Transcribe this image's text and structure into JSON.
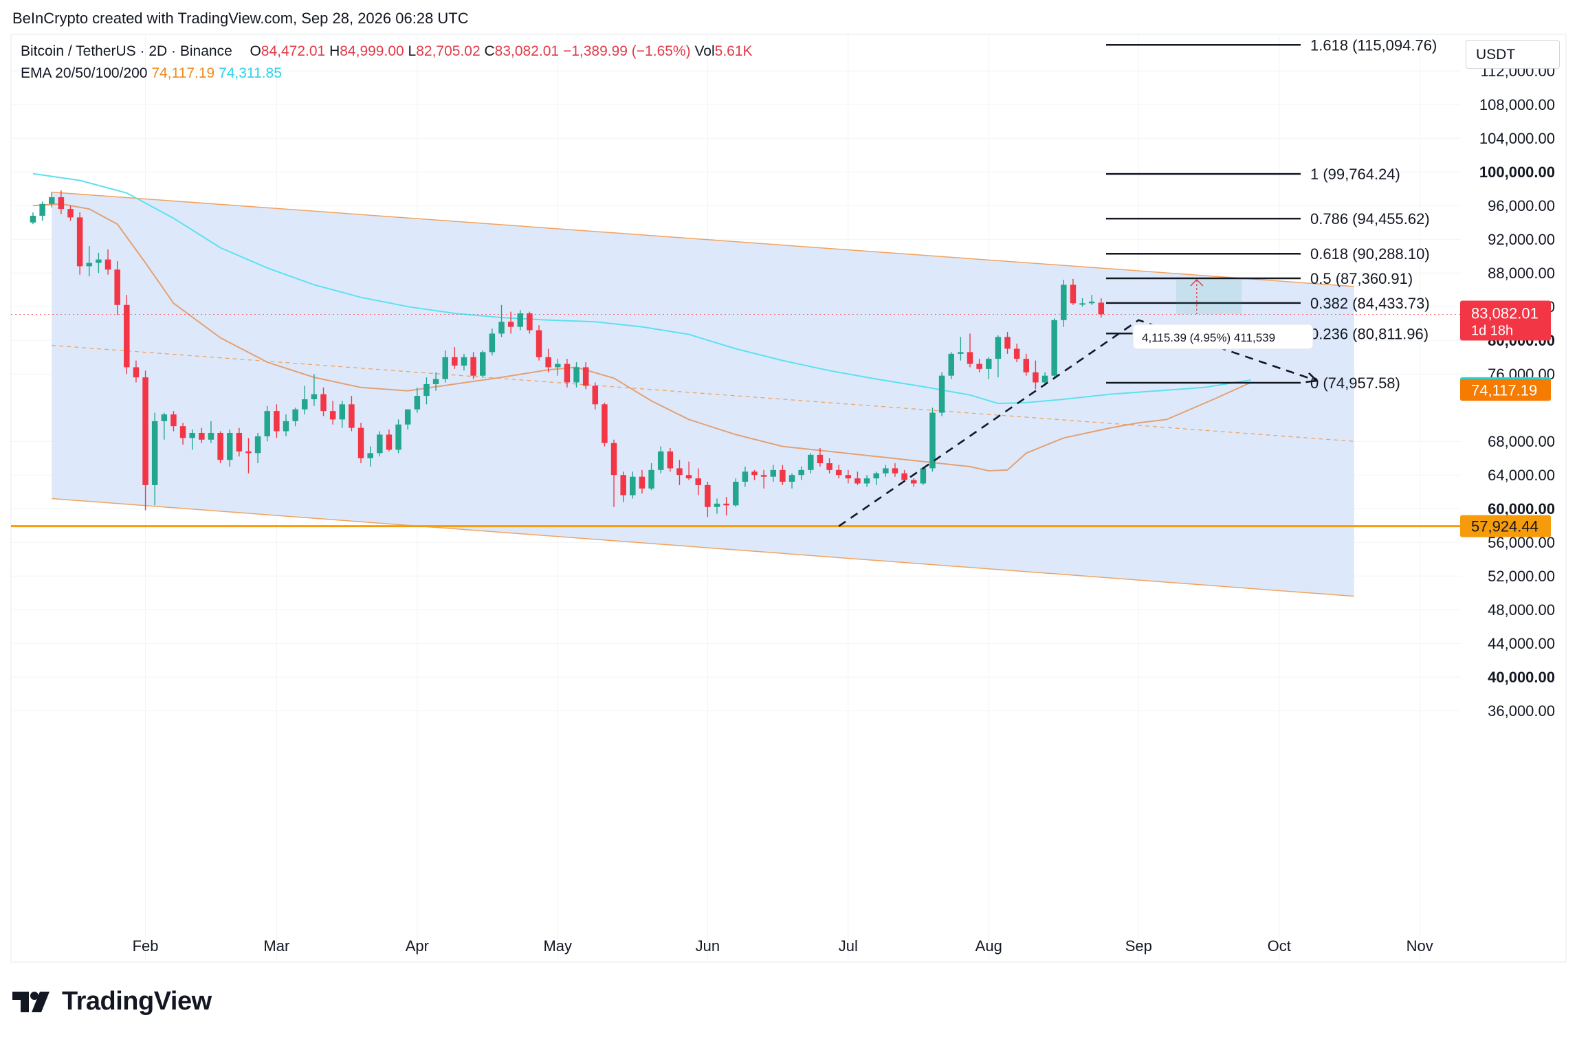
{
  "caption": "BeInCrypto created with TradingView.com, Sep 28, 2026 06:28 UTC",
  "symbol_line": {
    "symbol": "Bitcoin / TetherUS · 2D · Binance",
    "o_label": "O",
    "o_value": "84,472.01",
    "h_label": "H",
    "h_value": "84,999.00",
    "l_label": "L",
    "l_value": "82,705.02",
    "c_label": "C",
    "c_value": "83,082.01",
    "change": "−1,389.99 (−1.65%)",
    "vol_label": "Vol",
    "vol_value": "5.61K"
  },
  "ema_line": {
    "label": "EMA 20/50/100/200",
    "v1": "74,117.19",
    "v2": "74,311.85"
  },
  "currency": "USDT",
  "brand": "TradingView",
  "colors": {
    "up": "#22a68d",
    "down": "#f23645",
    "ema50": "#e3a173",
    "ema200": "#5ce1ee",
    "channel_fill": "#dbe8fb",
    "channel_edge": "#f0a35e",
    "support": "#f59b0c",
    "price_tag": "#f23645",
    "ema_cyan_tag": "#00e5ff",
    "ema_orange_tag": "#f57c00"
  },
  "chart_data": {
    "type": "candlestick",
    "ylim": [
      32000,
      118000
    ],
    "y_ticks": [
      {
        "v": 112000,
        "label": "112,000.00",
        "bold": false
      },
      {
        "v": 108000,
        "label": "108,000.00",
        "bold": false
      },
      {
        "v": 104000,
        "label": "104,000.00",
        "bold": false
      },
      {
        "v": 100000,
        "label": "100,000.00",
        "bold": true
      },
      {
        "v": 96000,
        "label": "96,000.00",
        "bold": false
      },
      {
        "v": 92000,
        "label": "92,000.00",
        "bold": false
      },
      {
        "v": 88000,
        "label": "88,000.00",
        "bold": false
      },
      {
        "v": 84000,
        "label": "84,000.00",
        "bold": false
      },
      {
        "v": 80000,
        "label": "80,000.00",
        "bold": true
      },
      {
        "v": 76000,
        "label": "76,000.00",
        "bold": false
      },
      {
        "v": 68000,
        "label": "68,000.00",
        "bold": false
      },
      {
        "v": 64000,
        "label": "64,000.00",
        "bold": false
      },
      {
        "v": 60000,
        "label": "60,000.00",
        "bold": true
      },
      {
        "v": 56000,
        "label": "56,000.00",
        "bold": false
      },
      {
        "v": 52000,
        "label": "52,000.00",
        "bold": false
      },
      {
        "v": 48000,
        "label": "48,000.00",
        "bold": false
      },
      {
        "v": 44000,
        "label": "44,000.00",
        "bold": false
      },
      {
        "v": 40000,
        "label": "40,000.00",
        "bold": true
      },
      {
        "v": 36000,
        "label": "36,000.00",
        "bold": false
      }
    ],
    "x_months": [
      {
        "label": "Feb",
        "bar": 12
      },
      {
        "label": "Mar",
        "bar": 26
      },
      {
        "label": "Apr",
        "bar": 41
      },
      {
        "label": "May",
        "bar": 56
      },
      {
        "label": "Jun",
        "bar": 72
      },
      {
        "label": "Jul",
        "bar": 87
      },
      {
        "label": "Aug",
        "bar": 102
      },
      {
        "label": "Sep",
        "bar": 118
      },
      {
        "label": "Oct",
        "bar": 133
      },
      {
        "label": "Nov",
        "bar": 148
      }
    ],
    "candles": [
      [
        94000,
        95200,
        93800,
        94800
      ],
      [
        94800,
        96500,
        94200,
        96200
      ],
      [
        96200,
        97600,
        95800,
        97000
      ],
      [
        97000,
        97800,
        95000,
        95600
      ],
      [
        95600,
        96000,
        94200,
        94600
      ],
      [
        94600,
        95200,
        87800,
        88800
      ],
      [
        88800,
        91200,
        87600,
        89200
      ],
      [
        89200,
        90400,
        88000,
        89600
      ],
      [
        89600,
        90800,
        87800,
        88400
      ],
      [
        88400,
        89400,
        83000,
        84200
      ],
      [
        84200,
        85400,
        76000,
        76800
      ],
      [
        76800,
        77600,
        75000,
        75600
      ],
      [
        75600,
        76400,
        59800,
        62800
      ],
      [
        62800,
        71400,
        60400,
        70400
      ],
      [
        70400,
        71400,
        68200,
        71200
      ],
      [
        71200,
        71600,
        69200,
        69800
      ],
      [
        69800,
        70200,
        67600,
        68400
      ],
      [
        68400,
        69400,
        67000,
        69000
      ],
      [
        69000,
        69600,
        67800,
        68200
      ],
      [
        68200,
        70400,
        67800,
        69000
      ],
      [
        69000,
        69200,
        65400,
        65800
      ],
      [
        65800,
        69400,
        65000,
        69000
      ],
      [
        69000,
        69600,
        66200,
        66800
      ],
      [
        66800,
        68400,
        64200,
        66600
      ],
      [
        66600,
        69000,
        65400,
        68600
      ],
      [
        68600,
        72200,
        68000,
        71600
      ],
      [
        71600,
        72400,
        68400,
        69200
      ],
      [
        69200,
        71200,
        68600,
        70400
      ],
      [
        70400,
        72000,
        69800,
        71800
      ],
      [
        71800,
        74600,
        71200,
        73000
      ],
      [
        73000,
        76000,
        72200,
        73600
      ],
      [
        73600,
        74400,
        71000,
        71600
      ],
      [
        71600,
        72800,
        70000,
        70600
      ],
      [
        70600,
        72800,
        69600,
        72400
      ],
      [
        72400,
        73400,
        69200,
        69600
      ],
      [
        69600,
        70200,
        65400,
        66000
      ],
      [
        66000,
        67400,
        65000,
        66600
      ],
      [
        66600,
        69200,
        66200,
        68800
      ],
      [
        68800,
        69400,
        66800,
        67000
      ],
      [
        67000,
        70600,
        66600,
        70000
      ],
      [
        70000,
        71800,
        69400,
        71800
      ],
      [
        71800,
        74400,
        71400,
        73400
      ],
      [
        73400,
        75600,
        72400,
        74800
      ],
      [
        74800,
        76200,
        74000,
        75400
      ],
      [
        75400,
        78800,
        75000,
        78000
      ],
      [
        78000,
        79200,
        76600,
        77000
      ],
      [
        77000,
        78400,
        76400,
        78000
      ],
      [
        78000,
        78600,
        75400,
        75800
      ],
      [
        75800,
        78800,
        75600,
        78600
      ],
      [
        78600,
        81400,
        78200,
        80800
      ],
      [
        80800,
        84200,
        80400,
        82200
      ],
      [
        82200,
        83400,
        80800,
        81600
      ],
      [
        81600,
        83600,
        81200,
        83200
      ],
      [
        83200,
        83400,
        80800,
        81200
      ],
      [
        81200,
        81800,
        77600,
        78000
      ],
      [
        78000,
        79000,
        76200,
        76800
      ],
      [
        76800,
        77800,
        75800,
        77200
      ],
      [
        77200,
        77800,
        74400,
        75000
      ],
      [
        75000,
        77400,
        74400,
        76800
      ],
      [
        76800,
        77400,
        74200,
        74600
      ],
      [
        74600,
        75000,
        71800,
        72400
      ],
      [
        72400,
        72600,
        67400,
        67800
      ],
      [
        67800,
        68200,
        60200,
        64000
      ],
      [
        64000,
        64400,
        60800,
        61600
      ],
      [
        61600,
        64400,
        61200,
        63800
      ],
      [
        63800,
        64600,
        61800,
        62400
      ],
      [
        62400,
        65400,
        62200,
        64600
      ],
      [
        64600,
        67400,
        64200,
        66800
      ],
      [
        66800,
        67200,
        64400,
        64800
      ],
      [
        64800,
        65800,
        62800,
        64000
      ],
      [
        64000,
        65600,
        63400,
        63600
      ],
      [
        63600,
        64800,
        61600,
        62800
      ],
      [
        62800,
        63200,
        59000,
        60200
      ],
      [
        60200,
        61200,
        59400,
        60600
      ],
      [
        60600,
        61400,
        59200,
        60400
      ],
      [
        60400,
        63600,
        60200,
        63200
      ],
      [
        63200,
        65000,
        62600,
        64400
      ],
      [
        64400,
        64600,
        63400,
        64000
      ],
      [
        64000,
        64600,
        62400,
        63800
      ],
      [
        63800,
        65200,
        63200,
        64600
      ],
      [
        64600,
        65200,
        62800,
        63200
      ],
      [
        63200,
        64200,
        62400,
        64000
      ],
      [
        64000,
        65000,
        63400,
        64600
      ],
      [
        64600,
        66600,
        64200,
        66400
      ],
      [
        66400,
        67200,
        65000,
        65400
      ],
      [
        65400,
        66000,
        64200,
        64600
      ],
      [
        64600,
        65200,
        63600,
        64000
      ],
      [
        64000,
        64600,
        63000,
        63600
      ],
      [
        63600,
        64400,
        62800,
        63000
      ],
      [
        63000,
        64000,
        62600,
        63600
      ],
      [
        63600,
        64400,
        62800,
        64200
      ],
      [
        64200,
        65200,
        63800,
        64800
      ],
      [
        64800,
        65400,
        63800,
        64200
      ],
      [
        64200,
        64600,
        63200,
        63400
      ],
      [
        63400,
        63600,
        62600,
        63000
      ],
      [
        63000,
        65000,
        62800,
        64800
      ],
      [
        64800,
        72000,
        64400,
        71400
      ],
      [
        71400,
        76200,
        71000,
        75800
      ],
      [
        75800,
        78600,
        75400,
        78400
      ],
      [
        78400,
        80400,
        77600,
        78600
      ],
      [
        78600,
        80800,
        76800,
        77200
      ],
      [
        77200,
        77800,
        76200,
        76600
      ],
      [
        76600,
        78000,
        75400,
        77800
      ],
      [
        77800,
        80600,
        75600,
        80400
      ],
      [
        80400,
        81000,
        78400,
        79000
      ],
      [
        79000,
        79600,
        77400,
        77800
      ],
      [
        77800,
        78400,
        75800,
        76200
      ],
      [
        76200,
        77600,
        74200,
        75000
      ],
      [
        75000,
        76200,
        74600,
        75800
      ],
      [
        75800,
        82600,
        75400,
        82400
      ],
      [
        82400,
        87200,
        81600,
        86600
      ],
      [
        86600,
        87300,
        84200,
        84400
      ],
      [
        84400,
        85000,
        84000,
        84400
      ],
      [
        84400,
        85400,
        84200,
        84600
      ],
      [
        84472.01,
        84999,
        82705.02,
        83082.01
      ]
    ],
    "ema200": [
      [
        0,
        99800
      ],
      [
        5,
        99000
      ],
      [
        10,
        97500
      ],
      [
        15,
        94500
      ],
      [
        20,
        91000
      ],
      [
        25,
        88600
      ],
      [
        30,
        86600
      ],
      [
        35,
        85100
      ],
      [
        40,
        84000
      ],
      [
        45,
        83200
      ],
      [
        50,
        82700
      ],
      [
        55,
        82400
      ],
      [
        60,
        82200
      ],
      [
        65,
        81600
      ],
      [
        70,
        80700
      ],
      [
        75,
        79000
      ],
      [
        80,
        77600
      ],
      [
        85,
        76400
      ],
      [
        90,
        75400
      ],
      [
        95,
        74500
      ],
      [
        100,
        73500
      ],
      [
        103,
        72500
      ],
      [
        106,
        72600
      ],
      [
        110,
        73000
      ],
      [
        115,
        73600
      ],
      [
        120,
        74000
      ],
      [
        125,
        74400
      ],
      [
        130,
        75300
      ]
    ],
    "ema50": [
      [
        0,
        96000
      ],
      [
        3,
        96200
      ],
      [
        6,
        95600
      ],
      [
        9,
        93800
      ],
      [
        12,
        89200
      ],
      [
        15,
        84400
      ],
      [
        20,
        80300
      ],
      [
        25,
        77400
      ],
      [
        30,
        75600
      ],
      [
        35,
        74400
      ],
      [
        40,
        74000
      ],
      [
        45,
        74800
      ],
      [
        50,
        75600
      ],
      [
        55,
        76500
      ],
      [
        58,
        76800
      ],
      [
        62,
        75500
      ],
      [
        66,
        72800
      ],
      [
        70,
        70600
      ],
      [
        75,
        68800
      ],
      [
        80,
        67400
      ],
      [
        85,
        66800
      ],
      [
        90,
        66200
      ],
      [
        95,
        65600
      ],
      [
        100,
        65000
      ],
      [
        102,
        64500
      ],
      [
        104,
        64600
      ],
      [
        106,
        66600
      ],
      [
        110,
        68400
      ],
      [
        115,
        69600
      ],
      [
        118,
        70200
      ],
      [
        121,
        70600
      ],
      [
        126,
        73000
      ],
      [
        130,
        75000
      ]
    ],
    "channel": {
      "upper": [
        [
          2,
          97600
        ],
        [
          141,
          86400
        ]
      ],
      "lower": [
        [
          2,
          61200
        ],
        [
          141,
          49600
        ]
      ],
      "mid": [
        [
          2,
          79400
        ],
        [
          141,
          68000
        ]
      ]
    },
    "support_level": 57924.44,
    "zigzag": [
      [
        86,
        57924
      ],
      [
        118,
        82400
      ],
      [
        137,
        75200
      ]
    ],
    "fib_levels": [
      {
        "label": "1.618 (115,094.76)",
        "v": 115094.76
      },
      {
        "label": "1 (99,764.24)",
        "v": 99764.24
      },
      {
        "label": "0.786 (94,455.62)",
        "v": 94455.62
      },
      {
        "label": "0.618 (90,288.10)",
        "v": 90288.1
      },
      {
        "label": "0.5 (87,360.91)",
        "v": 87360.91
      },
      {
        "label": "0.382 (84,433.73)",
        "v": 84433.73
      },
      {
        "label": "0.236 (80,811.96)",
        "v": 80811.96
      },
      {
        "label": "0 (74,957.58)",
        "v": 74957.58
      }
    ],
    "measure_tooltip": "4,115.39 (4.95%) 411,539",
    "price_tags": [
      {
        "label": "83,082.01",
        "sub": "1d 18h",
        "v": 83082.01,
        "kind": "last"
      },
      {
        "label": "74,311.85",
        "v": 74311.85,
        "kind": "ema200"
      },
      {
        "label": "74,117.19",
        "v": 74117.19,
        "kind": "ema50"
      },
      {
        "label": "57,924.44",
        "v": 57924.44,
        "kind": "support"
      }
    ]
  }
}
